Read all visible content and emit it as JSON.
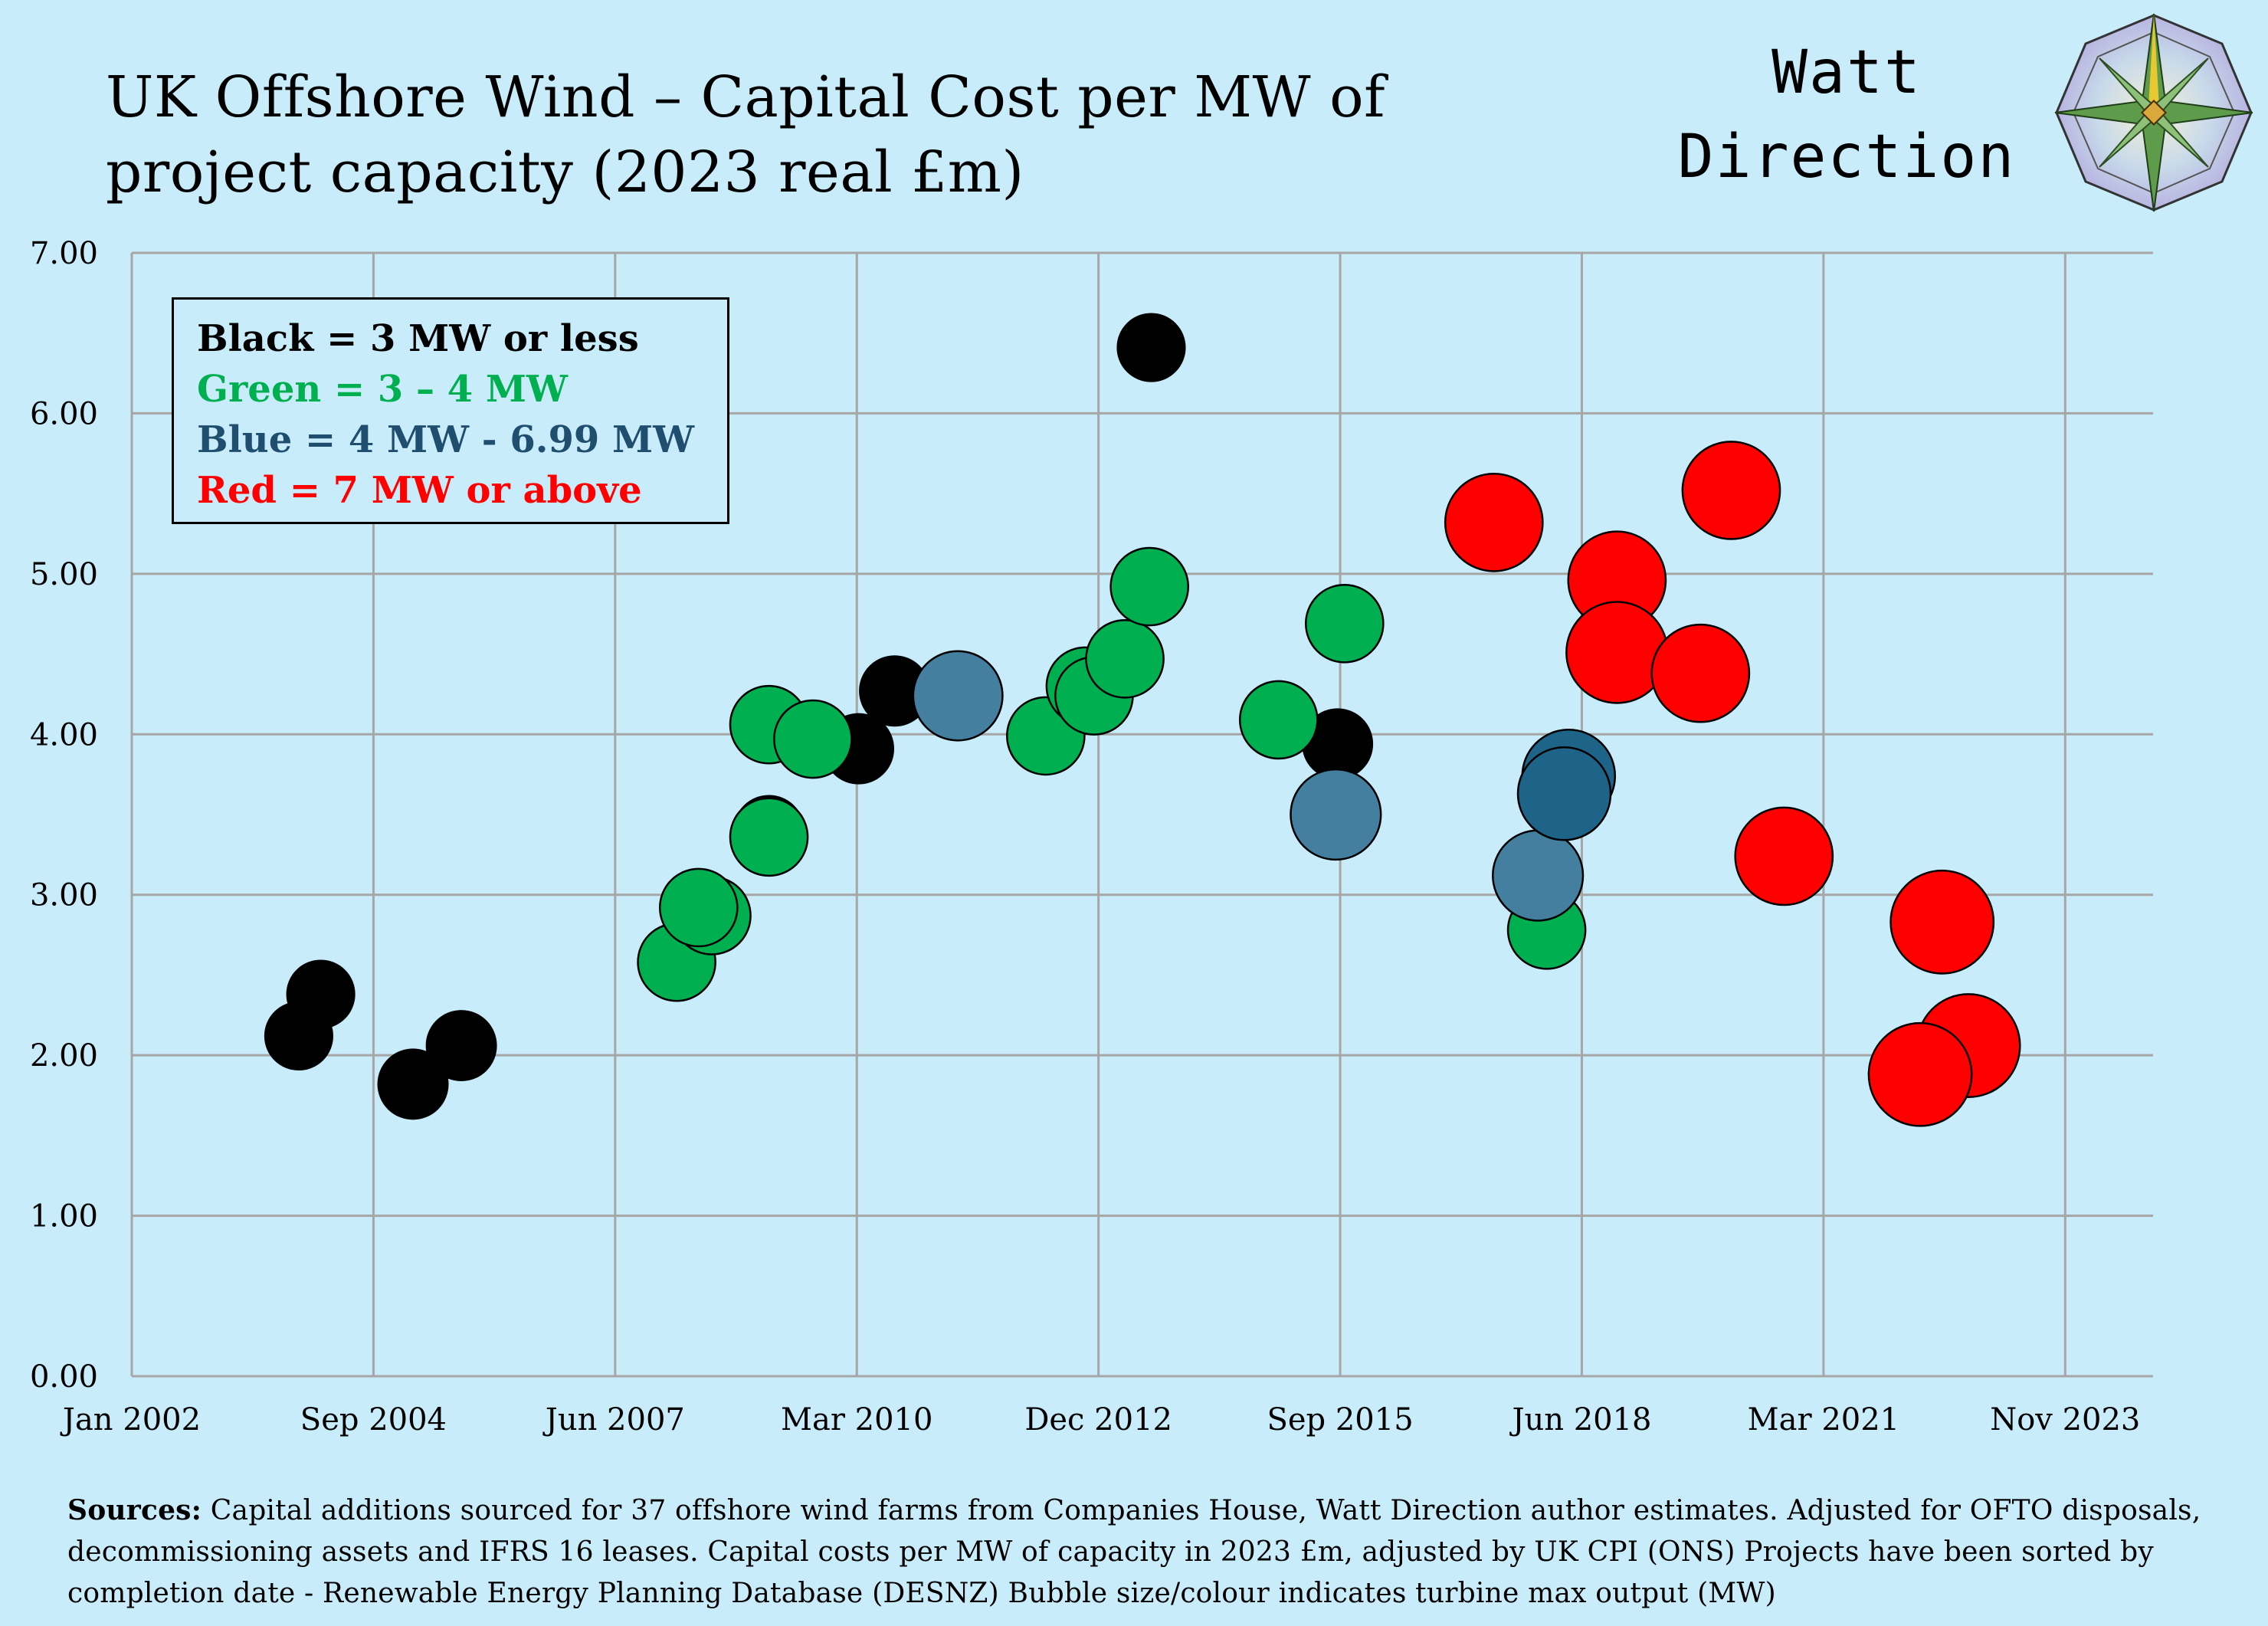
{
  "title": {
    "line1": "UK Offshore Wind – Capital Cost per MW of",
    "line2": "project capacity  (2023 real £m)"
  },
  "brand": {
    "line1": "Watt",
    "line2": "Direction",
    "logo_icon": "compass-rose-icon"
  },
  "legend": {
    "black": "Black = 3 MW or less",
    "green": "Green = 3 – 4 MW",
    "blue": "Blue = 4 MW -  6.99 MW",
    "red": "Red =  7 MW or above"
  },
  "sources": {
    "label": "Sources:",
    "text": " Capital additions sourced for 37 offshore wind farms from Companies House, Watt Direction author estimates. Adjusted for OFTO disposals, decommissioning assets and IFRS 16 leases. Capital costs per MW of capacity in 2023 £m, adjusted by  UK CPI (ONS) Projects have been sorted by completion date - Renewable Energy Planning Database (DESNZ) Bubble size/colour indicates turbine max output (MW)"
  },
  "colors": {
    "background": "#c9ecfa",
    "grid": "#a6a6a6",
    "black": "#000000",
    "green": "#00b050",
    "blue": "#447f9f",
    "blue_dark": "#1e6488",
    "red": "#ff0000"
  },
  "chart_data": {
    "type": "scatter",
    "title": "UK Offshore Wind – Capital Cost per MW of project capacity  (2023 real £m)",
    "xlabel": "",
    "ylabel": "",
    "xlim": [
      2002.0,
      2025.0
    ],
    "ylim": [
      0,
      7
    ],
    "grid": true,
    "x_ticks": [
      {
        "value": 2002.0,
        "label": "Jan 2002"
      },
      {
        "value": 2004.75,
        "label": "Sep 2004"
      },
      {
        "value": 2007.5,
        "label": "Jun 2007"
      },
      {
        "value": 2010.25,
        "label": "Mar 2010"
      },
      {
        "value": 2013.0,
        "label": "Dec 2012"
      },
      {
        "value": 2015.75,
        "label": "Sep 2015"
      },
      {
        "value": 2018.5,
        "label": "Jun 2018"
      },
      {
        "value": 2021.25,
        "label": "Mar 2021"
      },
      {
        "value": 2024.0,
        "label": "Nov 2023"
      }
    ],
    "y_ticks": [
      {
        "value": 0,
        "label": "0.00"
      },
      {
        "value": 1,
        "label": "1.00"
      },
      {
        "value": 2,
        "label": "2.00"
      },
      {
        "value": 3,
        "label": "3.00"
      },
      {
        "value": 4,
        "label": "4.00"
      },
      {
        "value": 5,
        "label": "5.00"
      },
      {
        "value": 6,
        "label": "6.00"
      },
      {
        "value": 7,
        "label": "7.00"
      }
    ],
    "series": [
      {
        "name": "Black = 3 MW or less",
        "color": "black",
        "points": [
          {
            "x": 2003.9,
            "y": 2.12,
            "size": 2
          },
          {
            "x": 2004.15,
            "y": 2.38,
            "size": 2
          },
          {
            "x": 2005.75,
            "y": 2.06,
            "size": 2.3
          },
          {
            "x": 2005.2,
            "y": 1.82,
            "size": 2.3
          },
          {
            "x": 2009.25,
            "y": 3.4,
            "size": 2.3
          },
          {
            "x": 2010.27,
            "y": 3.91,
            "size": 2.3
          },
          {
            "x": 2010.68,
            "y": 4.27,
            "size": 2.3
          },
          {
            "x": 2013.6,
            "y": 6.41,
            "size": 2
          },
          {
            "x": 2015.72,
            "y": 3.94,
            "size": 2.3
          }
        ]
      },
      {
        "name": "Green = 3 – 4 MW",
        "color": "green",
        "points": [
          {
            "x": 2008.2,
            "y": 2.58,
            "size": 3.6
          },
          {
            "x": 2008.6,
            "y": 2.87,
            "size": 3.6
          },
          {
            "x": 2008.45,
            "y": 2.92,
            "size": 3.6
          },
          {
            "x": 2009.25,
            "y": 3.36,
            "size": 3.6
          },
          {
            "x": 2009.25,
            "y": 4.06,
            "size": 3.6
          },
          {
            "x": 2009.75,
            "y": 3.97,
            "size": 3.6
          },
          {
            "x": 2012.4,
            "y": 3.99,
            "size": 3.6
          },
          {
            "x": 2012.85,
            "y": 4.3,
            "size": 3.6
          },
          {
            "x": 2012.95,
            "y": 4.24,
            "size": 3.6
          },
          {
            "x": 2013.3,
            "y": 4.47,
            "size": 3.6
          },
          {
            "x": 2013.58,
            "y": 4.92,
            "size": 3.6
          },
          {
            "x": 2015.05,
            "y": 4.09,
            "size": 3.6
          },
          {
            "x": 2015.8,
            "y": 4.69,
            "size": 3.6
          },
          {
            "x": 2018.1,
            "y": 2.78,
            "size": 3.6
          }
        ]
      },
      {
        "name": "Blue = 4 MW -  6.99 MW",
        "color": "blue",
        "points": [
          {
            "x": 2011.4,
            "y": 4.24,
            "size": 6
          },
          {
            "x": 2015.7,
            "y": 3.5,
            "size": 6.2
          },
          {
            "x": 2018.0,
            "y": 3.12,
            "size": 6.2
          },
          {
            "x": 2018.35,
            "y": 3.74,
            "size": 6.8
          },
          {
            "x": 2018.3,
            "y": 3.63,
            "size": 6.8
          }
        ]
      },
      {
        "name": "Red =  7 MW or above",
        "color": "red",
        "points": [
          {
            "x": 2017.5,
            "y": 5.32,
            "size": 8
          },
          {
            "x": 2018.9,
            "y": 4.96,
            "size": 8
          },
          {
            "x": 2018.9,
            "y": 4.51,
            "size": 9
          },
          {
            "x": 2019.85,
            "y": 4.38,
            "size": 8
          },
          {
            "x": 2020.2,
            "y": 5.52,
            "size": 8
          },
          {
            "x": 2020.8,
            "y": 3.24,
            "size": 8
          },
          {
            "x": 2022.6,
            "y": 2.83,
            "size": 9.5
          },
          {
            "x": 2022.9,
            "y": 2.06,
            "size": 9.5
          },
          {
            "x": 2022.35,
            "y": 1.88,
            "size": 9.5
          }
        ]
      }
    ]
  }
}
